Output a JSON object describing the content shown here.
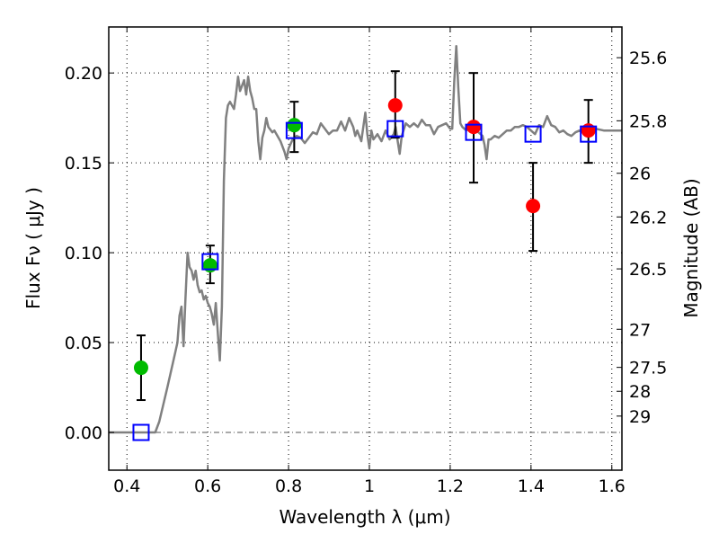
{
  "chart_data": {
    "type": "scatter",
    "title": "",
    "xlabel": "Wavelength  λ (μm)",
    "ylabel": "Flux  Fν  ( μJy )",
    "ylabel_right": "Magnitude (AB)",
    "xlim": [
      0.355,
      1.625
    ],
    "ylim": [
      -0.021,
      0.2256
    ],
    "grid": true,
    "x_ticks": [
      0.4,
      0.6,
      0.8,
      1.0,
      1.2,
      1.4,
      1.6
    ],
    "x_tick_labels": [
      "0.4",
      "0.6",
      "0.8",
      "1",
      "1.2",
      "1.4",
      "1.6"
    ],
    "y_ticks": [
      0.0,
      0.05,
      0.1,
      0.15,
      0.2
    ],
    "y_tick_labels": [
      "0.00",
      "0.05",
      "0.10",
      "0.15",
      "0.20"
    ],
    "right_ticks": [
      {
        "label": "25.6",
        "flux": 0.2085
      },
      {
        "label": "25.8",
        "flux": 0.1734
      },
      {
        "label": "26",
        "flux": 0.1442
      },
      {
        "label": "26.2",
        "flux": 0.1199
      },
      {
        "label": "26.5",
        "flux": 0.091
      },
      {
        "label": "27",
        "flux": 0.0574
      },
      {
        "label": "27.5",
        "flux": 0.0362
      },
      {
        "label": "28",
        "flux": 0.0229
      },
      {
        "label": "29",
        "flux": 0.0091
      }
    ],
    "series": [
      {
        "name": "model-spectrum",
        "kind": "line",
        "color": "#808080",
        "points": [
          [
            0.355,
            0.0
          ],
          [
            0.47,
            0.0
          ],
          [
            0.48,
            0.006
          ],
          [
            0.5,
            0.025
          ],
          [
            0.52,
            0.045
          ],
          [
            0.525,
            0.05
          ],
          [
            0.53,
            0.065
          ],
          [
            0.535,
            0.07
          ],
          [
            0.54,
            0.048
          ],
          [
            0.545,
            0.075
          ],
          [
            0.55,
            0.1
          ],
          [
            0.555,
            0.092
          ],
          [
            0.56,
            0.09
          ],
          [
            0.565,
            0.085
          ],
          [
            0.57,
            0.09
          ],
          [
            0.575,
            0.082
          ],
          [
            0.58,
            0.078
          ],
          [
            0.585,
            0.079
          ],
          [
            0.59,
            0.074
          ],
          [
            0.595,
            0.076
          ],
          [
            0.6,
            0.072
          ],
          [
            0.605,
            0.07
          ],
          [
            0.61,
            0.066
          ],
          [
            0.615,
            0.06
          ],
          [
            0.62,
            0.072
          ],
          [
            0.625,
            0.055
          ],
          [
            0.63,
            0.04
          ],
          [
            0.635,
            0.07
          ],
          [
            0.64,
            0.14
          ],
          [
            0.645,
            0.175
          ],
          [
            0.65,
            0.182
          ],
          [
            0.655,
            0.184
          ],
          [
            0.66,
            0.182
          ],
          [
            0.665,
            0.18
          ],
          [
            0.67,
            0.188
          ],
          [
            0.675,
            0.198
          ],
          [
            0.68,
            0.19
          ],
          [
            0.69,
            0.196
          ],
          [
            0.695,
            0.188
          ],
          [
            0.7,
            0.198
          ],
          [
            0.705,
            0.19
          ],
          [
            0.71,
            0.186
          ],
          [
            0.715,
            0.18
          ],
          [
            0.72,
            0.18
          ],
          [
            0.725,
            0.162
          ],
          [
            0.73,
            0.152
          ],
          [
            0.735,
            0.164
          ],
          [
            0.74,
            0.168
          ],
          [
            0.745,
            0.175
          ],
          [
            0.75,
            0.17
          ],
          [
            0.76,
            0.167
          ],
          [
            0.765,
            0.168
          ],
          [
            0.77,
            0.166
          ],
          [
            0.78,
            0.162
          ],
          [
            0.79,
            0.156
          ],
          [
            0.795,
            0.152
          ],
          [
            0.8,
            0.158
          ],
          [
            0.81,
            0.163
          ],
          [
            0.82,
            0.165
          ],
          [
            0.83,
            0.164
          ],
          [
            0.84,
            0.161
          ],
          [
            0.85,
            0.164
          ],
          [
            0.86,
            0.167
          ],
          [
            0.87,
            0.166
          ],
          [
            0.88,
            0.172
          ],
          [
            0.89,
            0.169
          ],
          [
            0.9,
            0.166
          ],
          [
            0.91,
            0.168
          ],
          [
            0.92,
            0.168
          ],
          [
            0.93,
            0.173
          ],
          [
            0.94,
            0.168
          ],
          [
            0.95,
            0.175
          ],
          [
            0.96,
            0.17
          ],
          [
            0.965,
            0.165
          ],
          [
            0.97,
            0.168
          ],
          [
            0.98,
            0.162
          ],
          [
            0.99,
            0.178
          ],
          [
            0.995,
            0.166
          ],
          [
            1.0,
            0.158
          ],
          [
            1.005,
            0.168
          ],
          [
            1.01,
            0.163
          ],
          [
            1.02,
            0.166
          ],
          [
            1.03,
            0.162
          ],
          [
            1.04,
            0.168
          ],
          [
            1.05,
            0.163
          ],
          [
            1.06,
            0.166
          ],
          [
            1.065,
            0.17
          ],
          [
            1.07,
            0.162
          ],
          [
            1.075,
            0.155
          ],
          [
            1.08,
            0.165
          ],
          [
            1.09,
            0.172
          ],
          [
            1.1,
            0.17
          ],
          [
            1.11,
            0.172
          ],
          [
            1.12,
            0.17
          ],
          [
            1.13,
            0.174
          ],
          [
            1.14,
            0.171
          ],
          [
            1.15,
            0.171
          ],
          [
            1.16,
            0.166
          ],
          [
            1.17,
            0.17
          ],
          [
            1.18,
            0.171
          ],
          [
            1.19,
            0.172
          ],
          [
            1.2,
            0.169
          ],
          [
            1.205,
            0.169
          ],
          [
            1.21,
            0.195
          ],
          [
            1.215,
            0.215
          ],
          [
            1.22,
            0.192
          ],
          [
            1.225,
            0.172
          ],
          [
            1.23,
            0.17
          ],
          [
            1.24,
            0.168
          ],
          [
            1.25,
            0.17
          ],
          [
            1.26,
            0.17
          ],
          [
            1.27,
            0.167
          ],
          [
            1.28,
            0.165
          ],
          [
            1.285,
            0.16
          ],
          [
            1.29,
            0.152
          ],
          [
            1.295,
            0.163
          ],
          [
            1.3,
            0.163
          ],
          [
            1.31,
            0.165
          ],
          [
            1.32,
            0.164
          ],
          [
            1.33,
            0.166
          ],
          [
            1.34,
            0.168
          ],
          [
            1.35,
            0.168
          ],
          [
            1.36,
            0.17
          ],
          [
            1.37,
            0.17
          ],
          [
            1.38,
            0.171
          ],
          [
            1.39,
            0.17
          ],
          [
            1.4,
            0.168
          ],
          [
            1.41,
            0.166
          ],
          [
            1.42,
            0.171
          ],
          [
            1.43,
            0.17
          ],
          [
            1.44,
            0.176
          ],
          [
            1.45,
            0.171
          ],
          [
            1.46,
            0.17
          ],
          [
            1.47,
            0.167
          ],
          [
            1.48,
            0.168
          ],
          [
            1.49,
            0.166
          ],
          [
            1.5,
            0.165
          ],
          [
            1.51,
            0.167
          ],
          [
            1.52,
            0.168
          ],
          [
            1.53,
            0.167
          ],
          [
            1.54,
            0.168
          ],
          [
            1.55,
            0.169
          ],
          [
            1.56,
            0.169
          ],
          [
            1.58,
            0.168
          ],
          [
            1.6,
            0.168
          ],
          [
            1.625,
            0.168
          ]
        ]
      },
      {
        "name": "model-bandpass-flux",
        "kind": "marker",
        "marker": "open-square",
        "color": "#0000ff",
        "points": [
          [
            0.435,
            0.0
          ],
          [
            0.606,
            0.095
          ],
          [
            0.814,
            0.168
          ],
          [
            1.064,
            0.169
          ],
          [
            1.258,
            0.167
          ],
          [
            1.405,
            0.166
          ],
          [
            1.542,
            0.166
          ]
        ]
      },
      {
        "name": "observed-flux-green",
        "kind": "marker",
        "marker": "filled-circle",
        "color": "#00bb00",
        "points": [
          {
            "x": 0.435,
            "y": 0.036,
            "err_low": 0.018,
            "err_high": 0.054
          },
          {
            "x": 0.606,
            "y": 0.093,
            "err_low": 0.083,
            "err_high": 0.104
          },
          {
            "x": 0.814,
            "y": 0.171,
            "err_low": 0.156,
            "err_high": 0.184
          }
        ]
      },
      {
        "name": "observed-flux-red",
        "kind": "marker",
        "marker": "filled-circle",
        "color": "#ff0000",
        "points": [
          {
            "x": 1.064,
            "y": 0.182,
            "err_low": 0.164,
            "err_high": 0.201
          },
          {
            "x": 1.258,
            "y": 0.17,
            "err_low": 0.139,
            "err_high": 0.2
          },
          {
            "x": 1.405,
            "y": 0.126,
            "err_low": 0.101,
            "err_high": 0.15
          },
          {
            "x": 1.542,
            "y": 0.168,
            "err_low": 0.15,
            "err_high": 0.185
          }
        ]
      }
    ]
  }
}
